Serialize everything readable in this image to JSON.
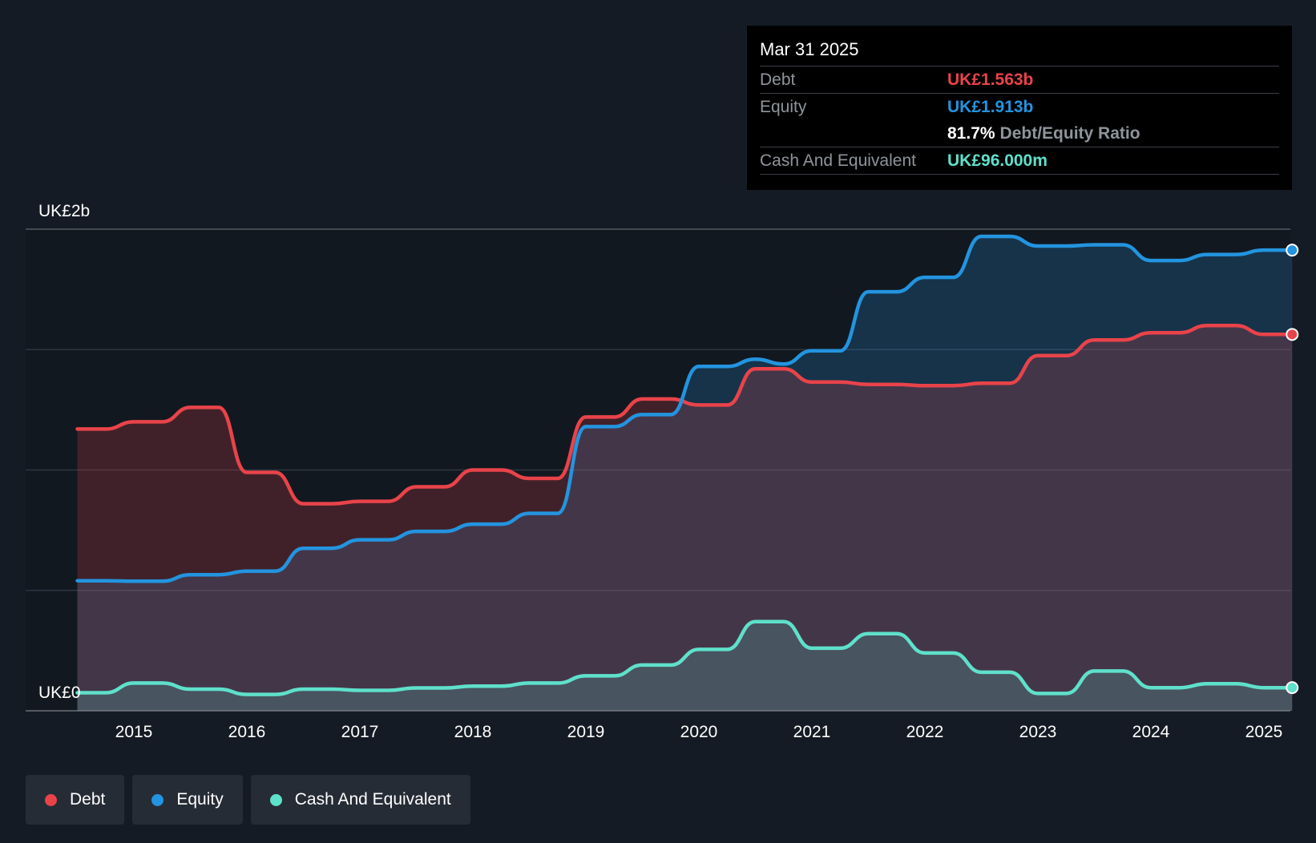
{
  "chart_data": {
    "type": "area",
    "title": "",
    "y_axis_labels": [
      "UK£2b",
      "UK£0"
    ],
    "ylim": [
      0,
      2000
    ],
    "xlim": [
      2014.5,
      2025.25
    ],
    "x_ticks": [
      "2015",
      "2016",
      "2017",
      "2018",
      "2019",
      "2020",
      "2021",
      "2022",
      "2023",
      "2024",
      "2025"
    ],
    "grid": true,
    "series": [
      {
        "name": "Debt",
        "color": "#e9434a",
        "points": [
          [
            2014.5,
            1170
          ],
          [
            2014.75,
            1170
          ],
          [
            2015.0,
            1200
          ],
          [
            2015.25,
            1200
          ],
          [
            2015.5,
            1260
          ],
          [
            2015.75,
            1260
          ],
          [
            2016.0,
            990
          ],
          [
            2016.25,
            990
          ],
          [
            2016.5,
            860
          ],
          [
            2016.75,
            860
          ],
          [
            2017.0,
            870
          ],
          [
            2017.25,
            870
          ],
          [
            2017.5,
            930
          ],
          [
            2017.75,
            930
          ],
          [
            2018.0,
            1000
          ],
          [
            2018.25,
            1000
          ],
          [
            2018.5,
            965
          ],
          [
            2018.75,
            965
          ],
          [
            2019.0,
            1220
          ],
          [
            2019.25,
            1220
          ],
          [
            2019.5,
            1295
          ],
          [
            2019.75,
            1295
          ],
          [
            2020.0,
            1270
          ],
          [
            2020.25,
            1270
          ],
          [
            2020.5,
            1420
          ],
          [
            2020.75,
            1420
          ],
          [
            2021.0,
            1365
          ],
          [
            2021.25,
            1365
          ],
          [
            2021.5,
            1355
          ],
          [
            2021.75,
            1355
          ],
          [
            2022.0,
            1350
          ],
          [
            2022.25,
            1350
          ],
          [
            2022.5,
            1360
          ],
          [
            2022.75,
            1360
          ],
          [
            2023.0,
            1475
          ],
          [
            2023.25,
            1475
          ],
          [
            2023.5,
            1540
          ],
          [
            2023.75,
            1540
          ],
          [
            2024.0,
            1570
          ],
          [
            2024.25,
            1570
          ],
          [
            2024.5,
            1600
          ],
          [
            2024.75,
            1600
          ],
          [
            2025.0,
            1563
          ],
          [
            2025.25,
            1563
          ]
        ]
      },
      {
        "name": "Equity",
        "color": "#2394df",
        "points": [
          [
            2014.5,
            540
          ],
          [
            2014.75,
            540
          ],
          [
            2015.0,
            538
          ],
          [
            2015.25,
            538
          ],
          [
            2015.5,
            565
          ],
          [
            2015.75,
            565
          ],
          [
            2016.0,
            580
          ],
          [
            2016.25,
            580
          ],
          [
            2016.5,
            675
          ],
          [
            2016.75,
            675
          ],
          [
            2017.0,
            710
          ],
          [
            2017.25,
            710
          ],
          [
            2017.5,
            745
          ],
          [
            2017.75,
            745
          ],
          [
            2018.0,
            775
          ],
          [
            2018.25,
            775
          ],
          [
            2018.5,
            820
          ],
          [
            2018.75,
            820
          ],
          [
            2019.0,
            1180
          ],
          [
            2019.25,
            1180
          ],
          [
            2019.5,
            1230
          ],
          [
            2019.75,
            1230
          ],
          [
            2020.0,
            1430
          ],
          [
            2020.25,
            1430
          ],
          [
            2020.5,
            1460
          ],
          [
            2020.75,
            1440
          ],
          [
            2021.0,
            1495
          ],
          [
            2021.25,
            1495
          ],
          [
            2021.5,
            1740
          ],
          [
            2021.75,
            1740
          ],
          [
            2022.0,
            1800
          ],
          [
            2022.25,
            1800
          ],
          [
            2022.5,
            1970
          ],
          [
            2022.75,
            1970
          ],
          [
            2023.0,
            1930
          ],
          [
            2023.25,
            1930
          ],
          [
            2023.5,
            1935
          ],
          [
            2023.75,
            1935
          ],
          [
            2024.0,
            1870
          ],
          [
            2024.25,
            1870
          ],
          [
            2024.5,
            1895
          ],
          [
            2024.75,
            1895
          ],
          [
            2025.0,
            1913
          ],
          [
            2025.25,
            1913
          ]
        ]
      },
      {
        "name": "Cash And Equivalent",
        "color": "#5fe0cb",
        "points": [
          [
            2014.5,
            75
          ],
          [
            2014.75,
            75
          ],
          [
            2015.0,
            115
          ],
          [
            2015.25,
            115
          ],
          [
            2015.5,
            90
          ],
          [
            2015.75,
            90
          ],
          [
            2016.0,
            68
          ],
          [
            2016.25,
            68
          ],
          [
            2016.5,
            90
          ],
          [
            2016.75,
            90
          ],
          [
            2017.0,
            85
          ],
          [
            2017.25,
            85
          ],
          [
            2017.5,
            95
          ],
          [
            2017.75,
            95
          ],
          [
            2018.0,
            102
          ],
          [
            2018.25,
            102
          ],
          [
            2018.5,
            115
          ],
          [
            2018.75,
            115
          ],
          [
            2019.0,
            145
          ],
          [
            2019.25,
            145
          ],
          [
            2019.5,
            190
          ],
          [
            2019.75,
            190
          ],
          [
            2020.0,
            255
          ],
          [
            2020.25,
            255
          ],
          [
            2020.5,
            370
          ],
          [
            2020.75,
            370
          ],
          [
            2021.0,
            260
          ],
          [
            2021.25,
            260
          ],
          [
            2021.5,
            320
          ],
          [
            2021.75,
            320
          ],
          [
            2022.0,
            240
          ],
          [
            2022.25,
            240
          ],
          [
            2022.5,
            160
          ],
          [
            2022.75,
            160
          ],
          [
            2023.0,
            72
          ],
          [
            2023.25,
            72
          ],
          [
            2023.5,
            165
          ],
          [
            2023.75,
            165
          ],
          [
            2024.0,
            96
          ],
          [
            2024.25,
            96
          ],
          [
            2024.5,
            112
          ],
          [
            2024.75,
            112
          ],
          [
            2025.0,
            96
          ],
          [
            2025.25,
            96
          ]
        ]
      }
    ],
    "tooltip": {
      "date": "Mar 31 2025",
      "debt_label": "Debt",
      "debt_value": "UK£1.563b",
      "equity_label": "Equity",
      "equity_value": "UK£1.913b",
      "ratio_value": "81.7%",
      "ratio_label": "Debt/Equity Ratio",
      "cash_label": "Cash And Equivalent",
      "cash_value": "UK£96.000m"
    },
    "legend": [
      "Debt",
      "Equity",
      "Cash And Equivalent"
    ],
    "legend_position": "bottom-left"
  }
}
